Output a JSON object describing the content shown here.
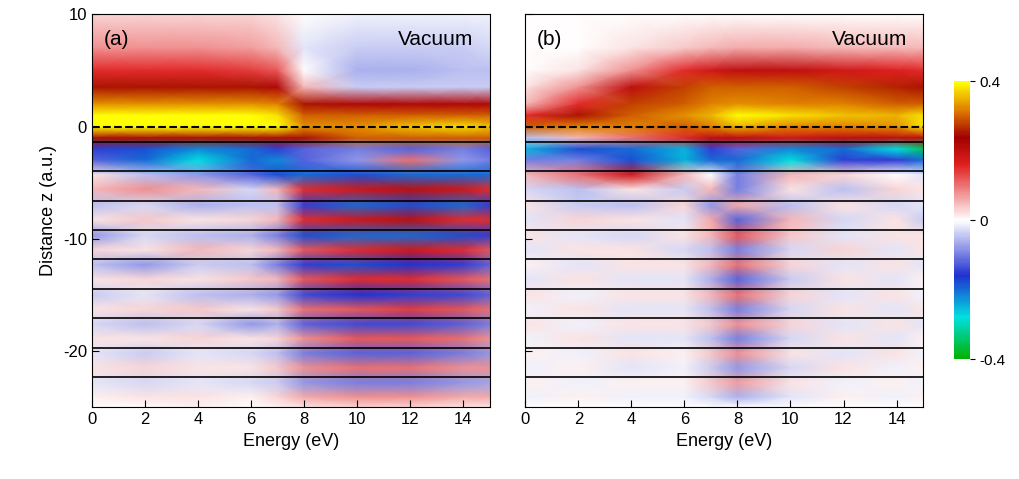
{
  "chart_data": [
    {
      "type": "heatmap",
      "title": "(a)",
      "annotations": [
        "Vacuum"
      ],
      "x_label": "Energy (eV)",
      "y_label": "Distance z (a.u.)",
      "xlim": [
        0,
        15
      ],
      "ylim": [
        -25,
        10
      ],
      "xticks": [
        0,
        2,
        4,
        6,
        8,
        10,
        12,
        14
      ],
      "yticks": [
        -20,
        -10,
        0,
        10
      ],
      "surface": 0,
      "layers": [
        -1.4,
        -4,
        -6.6,
        -9.2,
        -11.8,
        -14.5,
        -17.1,
        -19.7,
        -22.3
      ],
      "x": [
        0,
        2,
        4,
        6,
        7,
        8,
        10,
        12,
        14,
        15
      ],
      "y": [
        10,
        7,
        5,
        3.5,
        2,
        1,
        0,
        -1,
        -2,
        -3,
        -4.3,
        -5.6,
        -7,
        -8.3,
        -9.7,
        -11,
        -12.3,
        -13.6,
        -15,
        -16.3,
        -17.6,
        -18.9,
        -20.2,
        -21.5,
        -22.8,
        -24.1,
        -25
      ],
      "cells": [
        [
          0.03,
          0.03,
          0.03,
          0.03,
          0.02,
          0,
          -0.01,
          -0.01,
          -0.01,
          -0.01
        ],
        [
          0.08,
          0.08,
          0.08,
          0.07,
          0.05,
          -0.02,
          -0.04,
          -0.04,
          -0.04,
          -0.03
        ],
        [
          0.15,
          0.15,
          0.15,
          0.14,
          0.12,
          0,
          -0.06,
          -0.06,
          -0.05,
          -0.05
        ],
        [
          0.25,
          0.25,
          0.25,
          0.25,
          0.22,
          0.05,
          -0.04,
          -0.04,
          -0.04,
          -0.04
        ],
        [
          0.33,
          0.33,
          0.33,
          0.33,
          0.32,
          0.25,
          0.22,
          0.22,
          0.22,
          0.22
        ],
        [
          0.4,
          0.4,
          0.4,
          0.4,
          0.38,
          0.3,
          0.3,
          0.3,
          0.3,
          0.3
        ],
        [
          0.4,
          0.4,
          0.4,
          0.4,
          0.4,
          0.33,
          0.33,
          0.36,
          0.38,
          0.36
        ],
        [
          0.25,
          0.25,
          0.25,
          0.25,
          0.25,
          0.25,
          0.3,
          0.3,
          0.3,
          0.3
        ],
        [
          -0.15,
          -0.18,
          -0.22,
          -0.2,
          -0.15,
          -0.12,
          -0.1,
          -0.12,
          -0.1,
          -0.12
        ],
        [
          -0.12,
          -0.2,
          -0.28,
          -0.2,
          -0.22,
          -0.12,
          -0.08,
          0.1,
          -0.08,
          -0.1
        ],
        [
          0.02,
          -0.05,
          -0.08,
          -0.12,
          -0.18,
          -0.2,
          -0.18,
          -0.2,
          -0.2,
          -0.2
        ],
        [
          0.05,
          0.08,
          0.05,
          -0.03,
          0.05,
          0.15,
          0.18,
          0.2,
          0.18,
          0.15
        ],
        [
          -0.05,
          -0.03,
          -0.06,
          -0.05,
          -0.05,
          -0.15,
          -0.2,
          -0.18,
          -0.2,
          -0.15
        ],
        [
          0.02,
          0.04,
          0.02,
          0.03,
          0.05,
          0.15,
          0.18,
          0.2,
          0.15,
          0.15
        ],
        [
          -0.08,
          -0.03,
          -0.05,
          -0.06,
          -0.1,
          -0.18,
          -0.2,
          -0.2,
          -0.18,
          -0.15
        ],
        [
          0.03,
          0.02,
          0.05,
          0.03,
          0.05,
          0.12,
          0.15,
          0.18,
          0.15,
          0.12
        ],
        [
          -0.05,
          -0.08,
          -0.04,
          -0.05,
          -0.1,
          -0.15,
          -0.18,
          -0.16,
          -0.15,
          -0.12
        ],
        [
          0.02,
          0.03,
          0.02,
          0.04,
          0.05,
          0.12,
          0.15,
          0.15,
          0.12,
          0.1
        ],
        [
          -0.04,
          -0.02,
          -0.05,
          -0.06,
          -0.08,
          -0.14,
          -0.16,
          -0.15,
          -0.14,
          -0.12
        ],
        [
          0.02,
          0.03,
          0.04,
          0.02,
          0.04,
          0.1,
          0.12,
          0.14,
          0.12,
          0.1
        ],
        [
          -0.03,
          -0.05,
          -0.03,
          -0.08,
          -0.06,
          -0.12,
          -0.14,
          -0.14,
          -0.12,
          -0.1
        ],
        [
          0.02,
          0.02,
          0.03,
          0.02,
          0.03,
          0.08,
          0.12,
          0.12,
          0.1,
          0.08
        ],
        [
          -0.02,
          -0.04,
          -0.02,
          -0.03,
          -0.05,
          -0.1,
          -0.12,
          -0.12,
          -0.1,
          -0.08
        ],
        [
          0.02,
          0.03,
          0.02,
          0.02,
          0.04,
          0.08,
          0.1,
          0.1,
          0.08,
          0.08
        ],
        [
          -0.02,
          -0.03,
          -0.02,
          -0.03,
          -0.04,
          -0.08,
          -0.1,
          -0.1,
          -0.08,
          -0.07
        ],
        [
          0.01,
          0.02,
          0.02,
          0.01,
          0.03,
          0.06,
          0.08,
          0.08,
          0.06,
          0.06
        ],
        [
          0,
          0,
          0.01,
          0,
          0.01,
          0.02,
          0.03,
          0.03,
          0.02,
          0.02
        ]
      ]
    },
    {
      "type": "heatmap",
      "title": "(b)",
      "annotations": [
        "Vacuum"
      ],
      "x_label": "Energy (eV)",
      "tick_labels": "x",
      "xlim": [
        0,
        15
      ],
      "ylim": [
        -25,
        10
      ],
      "xticks": [
        0,
        2,
        4,
        6,
        8,
        10,
        12,
        14
      ],
      "yticks": [
        -20,
        -10,
        0,
        10
      ],
      "surface": 0,
      "layers": [
        -1.4,
        -4,
        -6.6,
        -9.2,
        -11.8,
        -14.5,
        -17.1,
        -19.7,
        -22.3
      ],
      "x": [
        0,
        2,
        4,
        6,
        7,
        8,
        10,
        12,
        14,
        15
      ],
      "y": [
        10,
        7,
        5,
        3.5,
        2,
        1,
        0,
        -1,
        -2,
        -3,
        -4.3,
        -5.6,
        -7,
        -8.3,
        -9.7,
        -11,
        -12.3,
        -13.6,
        -15,
        -16.3,
        -17.6,
        -18.9,
        -20.2,
        -21.5,
        -22.8,
        -24.1,
        -25
      ],
      "cells": [
        [
          0,
          0,
          0,
          0,
          0,
          0,
          0,
          0,
          0,
          0
        ],
        [
          0,
          0,
          0.02,
          0.04,
          0.05,
          0.06,
          0.06,
          0.05,
          0.05,
          0.05
        ],
        [
          0,
          0.02,
          0.08,
          0.15,
          0.18,
          0.2,
          0.2,
          0.18,
          0.16,
          0.15
        ],
        [
          0.02,
          0.08,
          0.2,
          0.28,
          0.3,
          0.3,
          0.3,
          0.28,
          0.26,
          0.25
        ],
        [
          0.05,
          0.15,
          0.28,
          0.3,
          0.32,
          0.33,
          0.32,
          0.32,
          0.3,
          0.3
        ],
        [
          0.15,
          0.25,
          0.3,
          0.33,
          0.35,
          0.4,
          0.38,
          0.36,
          0.35,
          0.38
        ],
        [
          0.3,
          0.32,
          0.32,
          0.3,
          0.32,
          0.35,
          0.32,
          0.32,
          0.33,
          0.38
        ],
        [
          -0.05,
          0.05,
          0.1,
          0.15,
          0.2,
          0.2,
          0.18,
          0.2,
          0.2,
          0.2
        ],
        [
          -0.25,
          -0.18,
          -0.2,
          -0.25,
          -0.15,
          -0.12,
          -0.22,
          -0.2,
          -0.28,
          -0.35
        ],
        [
          -0.1,
          -0.1,
          -0.18,
          -0.25,
          -0.2,
          -0.2,
          -0.28,
          -0.15,
          -0.15,
          -0.2
        ],
        [
          0.05,
          0.1,
          0.18,
          0.05,
          0.0,
          -0.1,
          0.05,
          0.03,
          0,
          -0.02
        ],
        [
          -0.03,
          -0.05,
          0.02,
          -0.04,
          0.05,
          -0.1,
          0.02,
          -0.05,
          0.03,
          0.02
        ],
        [
          0.02,
          -0.04,
          -0.05,
          0.03,
          -0.08,
          0.06,
          -0.05,
          0.02,
          -0.03,
          -0.02
        ],
        [
          -0.02,
          0.03,
          0.02,
          -0.02,
          0.06,
          -0.12,
          0.05,
          -0.03,
          0.02,
          -0.04
        ],
        [
          0.02,
          -0.02,
          -0.03,
          0.02,
          0.05,
          0.12,
          0.04,
          -0.02,
          0.02,
          0.02
        ],
        [
          -0.02,
          0.02,
          0.02,
          -0.03,
          -0.05,
          -0.1,
          -0.03,
          0.03,
          -0.02,
          0.02
        ],
        [
          0.01,
          -0.02,
          0.02,
          0.02,
          0.05,
          0.1,
          0.03,
          -0.02,
          0.02,
          -0.02
        ],
        [
          -0.02,
          0.02,
          -0.02,
          -0.02,
          -0.06,
          -0.12,
          -0.04,
          0.02,
          -0.02,
          0.01
        ],
        [
          0.02,
          -0.01,
          0.02,
          0.02,
          0.05,
          0.1,
          0.03,
          -0.02,
          0.02,
          -0.01
        ],
        [
          -0.01,
          0.02,
          -0.02,
          -0.02,
          -0.05,
          -0.1,
          -0.03,
          0.02,
          -0.02,
          0.02
        ],
        [
          0.02,
          -0.01,
          0.02,
          0.02,
          0.04,
          0.08,
          0.03,
          -0.02,
          0.02,
          -0.02
        ],
        [
          -0.01,
          0.02,
          -0.02,
          -0.02,
          -0.05,
          -0.1,
          -0.03,
          0.02,
          -0.02,
          0.01
        ],
        [
          0.01,
          -0.01,
          0.02,
          0.01,
          0.04,
          0.08,
          0.02,
          -0.02,
          0.02,
          -0.01
        ],
        [
          -0.01,
          0.01,
          -0.02,
          -0.01,
          -0.04,
          -0.08,
          -0.03,
          0.02,
          -0.01,
          0.01
        ],
        [
          0.01,
          -0.01,
          0.01,
          0.01,
          0.04,
          0.07,
          0.02,
          -0.01,
          0.01,
          -0.01
        ],
        [
          -0.01,
          0.01,
          -0.01,
          -0.01,
          -0.03,
          -0.06,
          -0.02,
          0.01,
          -0.01,
          0.01
        ],
        [
          0,
          0,
          0,
          0,
          0,
          0,
          0,
          0,
          0,
          0
        ]
      ],
      "colorbar": {
        "range": [
          -0.4,
          0.4
        ],
        "ticks": [
          -0.4,
          0,
          0.4
        ]
      }
    }
  ]
}
